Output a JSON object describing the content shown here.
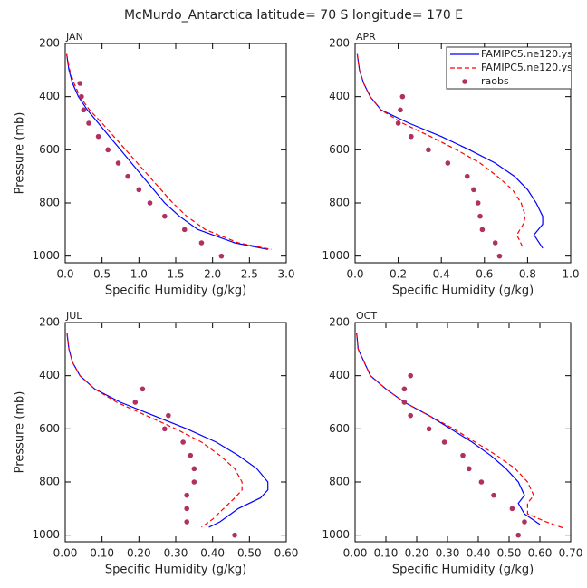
{
  "title": "McMurdo_Antarctica  latitude= 70 S longitude= 170 E",
  "chart_data": [
    {
      "type": "line",
      "panel_label": "JAN",
      "xlabel": "Specific Humidity (g/kg)",
      "ylabel": "Pressure (mb)",
      "xlim": [
        0,
        3
      ],
      "xticks": [
        {
          "value": 0,
          "label": "0.0"
        },
        0.5,
        {
          "value": 1,
          "label": "1.0"
        },
        1.5,
        {
          "value": 2,
          "label": "2.0"
        },
        2.5,
        {
          "value": 3,
          "label": "3.0"
        }
      ],
      "ylim": [
        1025,
        200
      ],
      "yticks": [
        200,
        400,
        600,
        800,
        1000
      ],
      "series": [
        {
          "mode": "line",
          "color": "#0000ff",
          "dashed": false,
          "x": [
            0.02,
            0.05,
            0.1,
            0.18,
            0.3,
            0.45,
            0.6,
            0.75,
            0.9,
            1.05,
            1.2,
            1.35,
            1.55,
            1.8,
            2.3,
            2.75
          ],
          "y": [
            240,
            300,
            350,
            400,
            450,
            500,
            550,
            600,
            650,
            700,
            750,
            800,
            850,
            900,
            950,
            975
          ]
        },
        {
          "mode": "line",
          "color": "#ff0000",
          "dashed": true,
          "x": [
            0.02,
            0.06,
            0.12,
            0.2,
            0.33,
            0.5,
            0.66,
            0.82,
            0.98,
            1.14,
            1.3,
            1.46,
            1.65,
            1.9,
            2.35,
            2.8
          ],
          "y": [
            240,
            300,
            350,
            400,
            450,
            500,
            550,
            600,
            650,
            700,
            750,
            800,
            850,
            900,
            950,
            975
          ]
        },
        {
          "mode": "markers",
          "color": "#b03060",
          "x": [
            0.2,
            0.22,
            0.25,
            0.32,
            0.45,
            0.58,
            0.72,
            0.85,
            1.0,
            1.15,
            1.35,
            1.62,
            1.85,
            2.12
          ],
          "y": [
            350,
            400,
            450,
            500,
            550,
            600,
            650,
            700,
            750,
            800,
            850,
            900,
            950,
            1000
          ]
        }
      ]
    },
    {
      "type": "line",
      "panel_label": "APR",
      "xlabel": "Specific Humidity (g/kg)",
      "legend": "upper right",
      "xlim": [
        0,
        1
      ],
      "xticks": [
        {
          "value": 0,
          "label": "0.0"
        },
        0.2,
        0.4,
        0.6,
        0.8,
        {
          "value": 1,
          "label": "1.0"
        }
      ],
      "ylim": [
        1025,
        200
      ],
      "yticks": [
        200,
        400,
        600,
        800,
        1000
      ],
      "series": [
        {
          "name": "FAMIPC5.ne120.ys",
          "mode": "line",
          "color": "#0000ff",
          "dashed": false,
          "x": [
            0.01,
            0.02,
            0.04,
            0.07,
            0.12,
            0.25,
            0.4,
            0.53,
            0.65,
            0.74,
            0.8,
            0.84,
            0.87,
            0.87,
            0.83,
            0.87
          ],
          "y": [
            240,
            300,
            350,
            400,
            450,
            500,
            550,
            600,
            650,
            700,
            750,
            800,
            850,
            880,
            920,
            970
          ]
        },
        {
          "name": "FAMIPC5.ne120.ys",
          "mode": "line",
          "color": "#ff0000",
          "dashed": true,
          "x": [
            0.01,
            0.02,
            0.04,
            0.07,
            0.12,
            0.22,
            0.35,
            0.47,
            0.58,
            0.66,
            0.73,
            0.77,
            0.79,
            0.78,
            0.75,
            0.78
          ],
          "y": [
            240,
            300,
            350,
            400,
            450,
            500,
            550,
            600,
            650,
            700,
            750,
            800,
            850,
            880,
            920,
            970
          ]
        },
        {
          "name": "raobs",
          "mode": "markers",
          "color": "#b03060",
          "x": [
            0.22,
            0.21,
            0.2,
            0.26,
            0.34,
            0.43,
            0.52,
            0.55,
            0.57,
            0.58,
            0.59,
            0.65,
            0.67
          ],
          "y": [
            400,
            450,
            500,
            550,
            600,
            650,
            700,
            750,
            800,
            850,
            900,
            950,
            1000
          ]
        }
      ]
    },
    {
      "type": "line",
      "panel_label": "JUL",
      "xlabel": "Specific Humidity (g/kg)",
      "ylabel": "Pressure (mb)",
      "xlim": [
        0,
        0.6
      ],
      "xticks": [
        {
          "value": 0,
          "label": "0.00"
        },
        {
          "value": 0.1,
          "label": "0.10"
        },
        {
          "value": 0.2,
          "label": "0.20"
        },
        {
          "value": 0.3,
          "label": "0.30"
        },
        {
          "value": 0.4,
          "label": "0.40"
        },
        {
          "value": 0.5,
          "label": "0.50"
        },
        {
          "value": 0.6,
          "label": "0.60"
        }
      ],
      "ylim": [
        1025,
        200
      ],
      "yticks": [
        200,
        400,
        600,
        800,
        1000
      ],
      "series": [
        {
          "mode": "line",
          "color": "#0000ff",
          "dashed": false,
          "x": [
            0.005,
            0.01,
            0.02,
            0.04,
            0.08,
            0.15,
            0.24,
            0.33,
            0.41,
            0.47,
            0.52,
            0.55,
            0.55,
            0.53,
            0.47,
            0.42,
            0.39
          ],
          "y": [
            240,
            300,
            350,
            400,
            450,
            500,
            550,
            600,
            650,
            700,
            750,
            800,
            830,
            860,
            900,
            950,
            970
          ]
        },
        {
          "mode": "line",
          "color": "#ff0000",
          "dashed": true,
          "x": [
            0.005,
            0.01,
            0.02,
            0.04,
            0.08,
            0.14,
            0.22,
            0.3,
            0.37,
            0.42,
            0.46,
            0.48,
            0.48,
            0.46,
            0.43,
            0.4,
            0.37
          ],
          "y": [
            240,
            300,
            350,
            400,
            450,
            500,
            550,
            600,
            650,
            700,
            750,
            800,
            830,
            860,
            900,
            940,
            970
          ]
        },
        {
          "mode": "markers",
          "color": "#b03060",
          "x": [
            0.21,
            0.19,
            0.28,
            0.27,
            0.32,
            0.34,
            0.35,
            0.35,
            0.33,
            0.33,
            0.33,
            0.46
          ],
          "y": [
            450,
            500,
            550,
            600,
            650,
            700,
            750,
            800,
            850,
            900,
            950,
            1000
          ]
        }
      ]
    },
    {
      "type": "line",
      "panel_label": "OCT",
      "xlabel": "Specific Humidity (g/kg)",
      "xlim": [
        0,
        0.7
      ],
      "xticks": [
        {
          "value": 0,
          "label": "0.00"
        },
        {
          "value": 0.1,
          "label": "0.10"
        },
        {
          "value": 0.2,
          "label": "0.20"
        },
        {
          "value": 0.3,
          "label": "0.30"
        },
        {
          "value": 0.4,
          "label": "0.40"
        },
        {
          "value": 0.5,
          "label": "0.50"
        },
        {
          "value": 0.6,
          "label": "0.60"
        },
        {
          "value": 0.7,
          "label": "0.70"
        }
      ],
      "ylim": [
        1025,
        200
      ],
      "yticks": [
        200,
        400,
        600,
        800,
        1000
      ],
      "series": [
        {
          "mode": "line",
          "color": "#0000ff",
          "dashed": false,
          "x": [
            0.005,
            0.01,
            0.03,
            0.05,
            0.1,
            0.16,
            0.24,
            0.31,
            0.38,
            0.44,
            0.49,
            0.53,
            0.55,
            0.53,
            0.55,
            0.6
          ],
          "y": [
            240,
            300,
            350,
            400,
            450,
            500,
            550,
            600,
            650,
            700,
            750,
            800,
            850,
            880,
            920,
            960
          ]
        },
        {
          "mode": "line",
          "color": "#ff0000",
          "dashed": true,
          "x": [
            0.005,
            0.01,
            0.03,
            0.05,
            0.1,
            0.16,
            0.24,
            0.32,
            0.39,
            0.46,
            0.52,
            0.56,
            0.58,
            0.56,
            0.56,
            0.62,
            0.68
          ],
          "y": [
            240,
            300,
            350,
            400,
            450,
            500,
            550,
            600,
            650,
            700,
            750,
            800,
            850,
            880,
            920,
            950,
            975
          ]
        },
        {
          "mode": "markers",
          "color": "#b03060",
          "x": [
            0.18,
            0.16,
            0.16,
            0.18,
            0.24,
            0.29,
            0.35,
            0.37,
            0.41,
            0.45,
            0.51,
            0.55,
            0.53
          ],
          "y": [
            400,
            450,
            500,
            550,
            600,
            650,
            700,
            750,
            800,
            850,
            900,
            950,
            1000
          ]
        }
      ]
    }
  ]
}
